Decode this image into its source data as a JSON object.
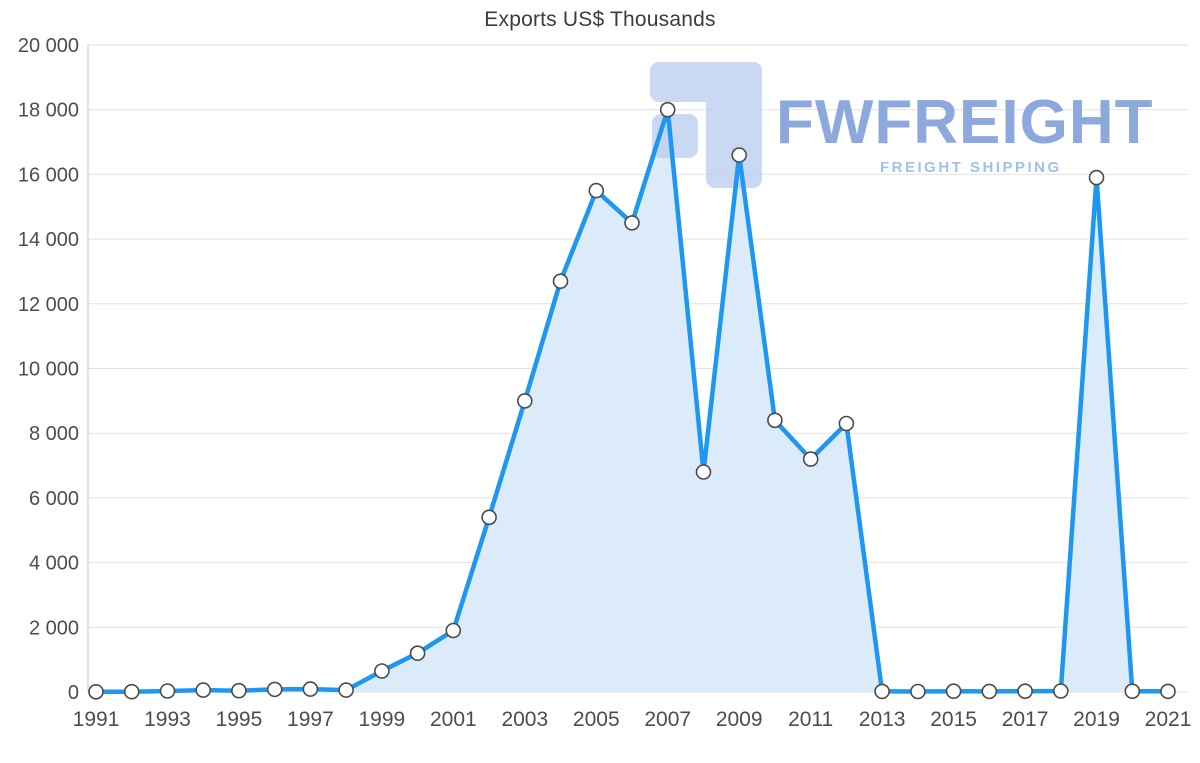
{
  "chart_data": {
    "type": "area",
    "title": "Exports US$ Thousands",
    "series_name": "Exports",
    "x": [
      1991,
      1992,
      1993,
      1994,
      1995,
      1996,
      1997,
      1998,
      1999,
      2000,
      2001,
      2002,
      2003,
      2004,
      2005,
      2006,
      2007,
      2008,
      2009,
      2010,
      2011,
      2012,
      2013,
      2014,
      2015,
      2016,
      2017,
      2018,
      2019,
      2020,
      2021
    ],
    "values": [
      5,
      10,
      30,
      60,
      40,
      80,
      90,
      60,
      650,
      1200,
      1900,
      5400,
      9000,
      12700,
      15500,
      14500,
      18000,
      6800,
      16600,
      8400,
      7200,
      8300,
      20,
      15,
      25,
      20,
      25,
      30,
      15900,
      25,
      20
    ],
    "ylim": [
      0,
      20000
    ],
    "yticks": [
      0,
      2000,
      4000,
      6000,
      8000,
      10000,
      12000,
      14000,
      16000,
      18000,
      20000
    ],
    "ytick_labels": [
      "0",
      "2 000",
      "4 000",
      "6 000",
      "8 000",
      "10 000",
      "12 000",
      "14 000",
      "16 000",
      "18 000",
      "20 000"
    ],
    "xticks": [
      1991,
      1993,
      1995,
      1997,
      1999,
      2001,
      2003,
      2005,
      2007,
      2009,
      2011,
      2013,
      2015,
      2017,
      2019,
      2021
    ],
    "grid": "horizontal",
    "legend": "none",
    "colors": {
      "line": "#1d97f0",
      "fill": "#dcebfa",
      "marker_fill": "#ffffff",
      "marker_stroke": "#4a4a4a",
      "grid": "#e2e2e2",
      "axis": "#c8c8c8",
      "tick_text": "#4d4d4d"
    }
  },
  "watermark": {
    "text": "FWFREIGHT",
    "subtext": "FREIGHT SHIPPING",
    "logo_color": "#bccff1",
    "text_color": "#8da8dc",
    "subtext_color": "#a3c0e8"
  }
}
